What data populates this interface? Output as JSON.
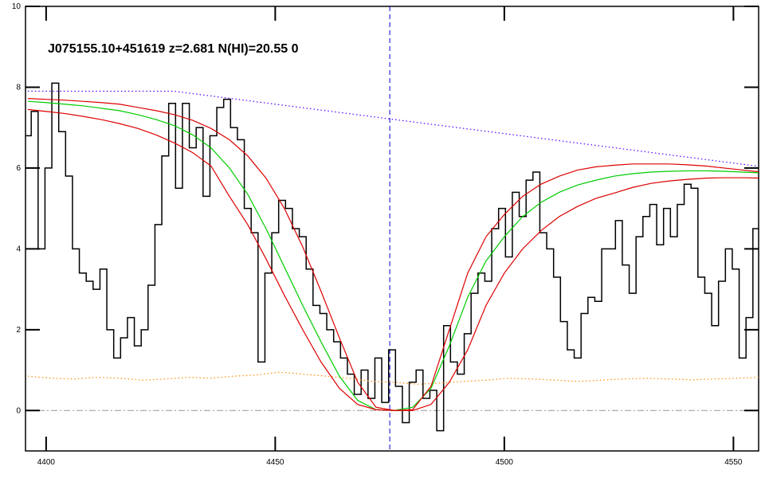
{
  "chart_data": {
    "type": "line",
    "title": "J075155.10+451619 z=2.681 N(HI)=20.55 0",
    "xlim": [
      4395.5,
      4555.5
    ],
    "ylim": [
      -1,
      10
    ],
    "xticks": [
      4400,
      4450,
      4500,
      4550
    ],
    "yticks": [
      0,
      2,
      4,
      6,
      8,
      10
    ],
    "vlines": [
      4475
    ],
    "vline_color": "#0000cc",
    "hlines": [
      0
    ],
    "hline_color": "#999999",
    "series": [
      {
        "color": "#000000",
        "style": "step",
        "x": [
          4396,
          4397.5,
          4399,
          4400.5,
          4402,
          4403.5,
          4405,
          4406.5,
          4408,
          4409.5,
          4411,
          4412.5,
          4414,
          4415.5,
          4417,
          4418.5,
          4420,
          4421.5,
          4423,
          4424.5,
          4426,
          4427.5,
          4429,
          4430.5,
          4432,
          4433.5,
          4435,
          4436.5,
          4438,
          4439.5,
          4441,
          4442.5,
          4444,
          4445.5,
          4447,
          4448.5,
          4450,
          4451.5,
          4453,
          4454.5,
          4456,
          4457.5,
          4459,
          4460.5,
          4462,
          4463.5,
          4465,
          4466.5,
          4468,
          4469.5,
          4471,
          4472.5,
          4474,
          4475.5,
          4477,
          4478.5,
          4480,
          4481.5,
          4483,
          4484.5,
          4486,
          4487.5,
          4489,
          4490.5,
          4492,
          4493.5,
          4495,
          4496.5,
          4498,
          4499.5,
          4501,
          4502.5,
          4504,
          4505.5,
          4507,
          4508.5,
          4510,
          4511.5,
          4513,
          4514.5,
          4516,
          4517.5,
          4519,
          4520.5,
          4522,
          4523.5,
          4525,
          4526.5,
          4528,
          4529.5,
          4531,
          4532.5,
          4534,
          4535.5,
          4537,
          4538.5,
          4540,
          4541.5,
          4543,
          4544.5,
          4546,
          4547.5,
          4549,
          4550.5,
          4552,
          4553.5,
          4555
        ],
        "values": [
          6.8,
          7.4,
          4.0,
          6.0,
          8.1,
          6.9,
          5.8,
          4.0,
          3.4,
          3.2,
          3.0,
          3.5,
          2.0,
          1.3,
          1.8,
          2.3,
          1.6,
          2.0,
          3.1,
          4.6,
          6.3,
          7.6,
          5.5,
          7.6,
          6.5,
          7.0,
          5.3,
          6.8,
          7.5,
          7.7,
          7.0,
          6.7,
          5.0,
          4.4,
          1.2,
          3.4,
          4.4,
          5.2,
          5.0,
          4.5,
          4.3,
          3.5,
          2.6,
          2.4,
          2.0,
          1.7,
          1.3,
          0.9,
          0.4,
          1.0,
          0.3,
          1.3,
          0.2,
          1.5,
          0.6,
          -0.3,
          0.7,
          1.0,
          0.3,
          0.5,
          -0.5,
          2.1,
          1.2,
          0.9,
          1.9,
          2.9,
          3.4,
          3.2,
          4.5,
          5.0,
          3.8,
          5.4,
          4.8,
          5.7,
          5.9,
          4.4,
          4.0,
          3.3,
          2.2,
          1.5,
          1.3,
          2.4,
          2.8,
          2.7,
          4.0,
          4.0,
          4.7,
          3.6,
          2.9,
          4.3,
          4.8,
          5.1,
          4.1,
          5.0,
          4.3,
          5.1,
          5.6,
          5.5,
          3.3,
          2.9,
          2.1,
          3.2,
          4.0,
          3.5,
          1.3,
          2.3,
          4.5
        ]
      },
      {
        "color": "#ff8c00",
        "style": "dotted",
        "x": [
          4396,
          4401,
          4406,
          4411,
          4416,
          4421,
          4426,
          4431,
          4436,
          4441,
          4446,
          4451,
          4456,
          4461,
          4466,
          4471,
          4476,
          4481,
          4486,
          4491,
          4496,
          4501,
          4506,
          4511,
          4516,
          4521,
          4526,
          4531,
          4536,
          4541,
          4546,
          4551,
          4556
        ],
        "values": [
          0.85,
          0.8,
          0.78,
          0.82,
          0.8,
          0.75,
          0.78,
          0.82,
          0.8,
          0.85,
          0.88,
          0.95,
          0.9,
          0.85,
          0.8,
          0.72,
          0.7,
          0.65,
          0.68,
          0.72,
          0.75,
          0.8,
          0.78,
          0.75,
          0.72,
          0.75,
          0.78,
          0.8,
          0.78,
          0.76,
          0.78,
          0.8,
          0.82
        ]
      },
      {
        "color": "#5000ff",
        "style": "dotted",
        "x": [
          4396,
          4428,
          4555
        ],
        "values": [
          7.9,
          7.9,
          6.05
        ]
      },
      {
        "color": "#00cc00",
        "style": "solid",
        "x": [
          4396,
          4400,
          4404,
          4408,
          4412,
          4416,
          4420,
          4424,
          4428,
          4432,
          4436,
          4440,
          4444,
          4448,
          4452,
          4456,
          4460,
          4464,
          4468,
          4472,
          4476,
          4480,
          4484,
          4488,
          4492,
          4496,
          4500,
          4504,
          4508,
          4512,
          4516,
          4520,
          4524,
          4528,
          4532,
          4536,
          4540,
          4544,
          4548,
          4552,
          4556
        ],
        "values": [
          7.65,
          7.62,
          7.58,
          7.54,
          7.48,
          7.42,
          7.32,
          7.2,
          7.05,
          6.82,
          6.5,
          6.0,
          5.35,
          4.5,
          3.55,
          2.6,
          1.7,
          0.85,
          0.25,
          0.02,
          0.0,
          0.08,
          0.55,
          1.6,
          2.8,
          3.7,
          4.3,
          4.8,
          5.15,
          5.4,
          5.58,
          5.7,
          5.8,
          5.86,
          5.9,
          5.92,
          5.93,
          5.93,
          5.92,
          5.9,
          5.88
        ]
      },
      {
        "color": "#dd0000",
        "style": "solid",
        "x": [
          4396,
          4400,
          4404,
          4408,
          4412,
          4416,
          4420,
          4424,
          4428,
          4432,
          4436,
          4440,
          4444,
          4448,
          4452,
          4456,
          4460,
          4464,
          4468,
          4472,
          4476,
          4480,
          4484,
          4488,
          4492,
          4496,
          4500,
          4504,
          4508,
          4512,
          4516,
          4520,
          4524,
          4528,
          4532,
          4536,
          4540,
          4544,
          4548,
          4552,
          4556
        ],
        "values": [
          7.72,
          7.7,
          7.68,
          7.65,
          7.62,
          7.58,
          7.5,
          7.42,
          7.32,
          7.18,
          6.98,
          6.7,
          6.3,
          5.75,
          5.0,
          4.05,
          2.95,
          1.8,
          0.7,
          0.08,
          0.0,
          0.02,
          0.6,
          2.0,
          3.4,
          4.3,
          4.85,
          5.3,
          5.6,
          5.8,
          5.95,
          6.03,
          6.07,
          6.1,
          6.1,
          6.1,
          6.08,
          6.05,
          6.0,
          5.95,
          5.9
        ]
      },
      {
        "color": "#dd0000",
        "style": "solid",
        "x": [
          4396,
          4400,
          4404,
          4408,
          4412,
          4416,
          4420,
          4424,
          4428,
          4432,
          4436,
          4440,
          4444,
          4448,
          4452,
          4456,
          4460,
          4464,
          4468,
          4472,
          4476,
          4480,
          4484,
          4488,
          4492,
          4496,
          4500,
          4504,
          4508,
          4512,
          4516,
          4520,
          4524,
          4528,
          4532,
          4536,
          4540,
          4544,
          4548,
          4552,
          4556
        ],
        "values": [
          7.45,
          7.4,
          7.35,
          7.28,
          7.2,
          7.1,
          6.98,
          6.82,
          6.62,
          6.38,
          6.05,
          5.3,
          4.6,
          3.75,
          2.85,
          2.0,
          1.2,
          0.55,
          0.15,
          0.02,
          0.0,
          0.0,
          0.15,
          0.7,
          1.5,
          2.6,
          3.4,
          4.0,
          4.45,
          4.8,
          5.05,
          5.25,
          5.38,
          5.52,
          5.62,
          5.68,
          5.72,
          5.75,
          5.76,
          5.76,
          5.75
        ]
      }
    ]
  }
}
